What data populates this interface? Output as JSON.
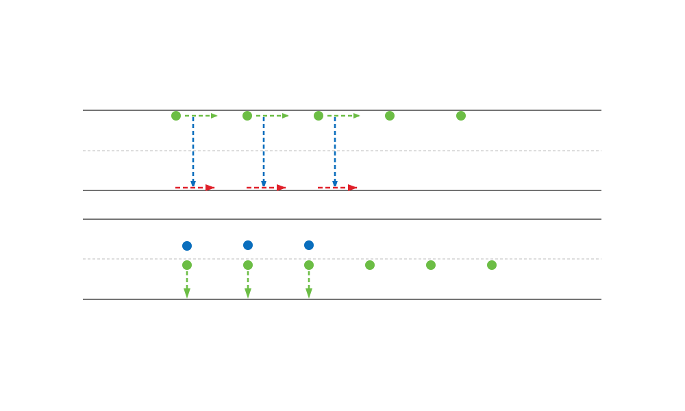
{
  "colors": {
    "green": "#6cbd45",
    "blue": "#0a6ebd",
    "red": "#e0202a",
    "rule": "#222222",
    "guide": "#bbbbbb"
  },
  "panels": [
    {
      "id": "top",
      "green_dots": 5,
      "dots_with_right_arrows": 3,
      "down_arrows": 3,
      "red_arrows": 3
    },
    {
      "id": "bottom",
      "blue_dots": 3,
      "green_dots": 6,
      "down_arrows": 3
    }
  ]
}
